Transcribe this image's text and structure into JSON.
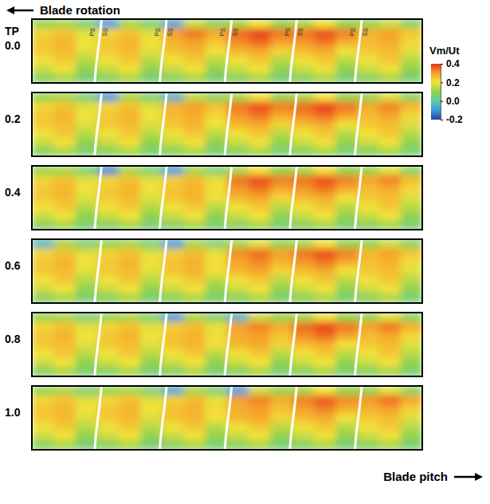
{
  "chart_data": {
    "type": "heatmap",
    "rotation_label": "Blade rotation",
    "x_label": "Blade pitch",
    "panel_axis_label": "TP",
    "tick_labels": false,
    "colorbar_title": "Vm/Ut",
    "colorbar_lim": [
      -0.2,
      0.4
    ],
    "colorbar_ticks": [
      0.4,
      0.2,
      {
        "value": 0,
        "label": "0.0"
      },
      -0.2
    ],
    "colorbar_colors": [
      "#2a3f9e",
      "#3a9ad9",
      "#5cc9a7",
      "#8fd24e",
      "#f2e33b",
      "#f5a02a",
      "#e8301c"
    ],
    "panels": [
      {
        "label": "0.0",
        "blade_labels": [
          "PS",
          "SS"
        ],
        "cells": [
          [
            0.1,
            0.12,
            0.06,
            -0.1,
            0.12,
            0.06,
            -0.08,
            0.16,
            0.08,
            0.12,
            0.2,
            0.1,
            0.12,
            0.2,
            0.1,
            0.1,
            0.16,
            0.08
          ],
          [
            0.22,
            0.25,
            0.18,
            0.22,
            0.25,
            0.18,
            0.3,
            0.34,
            0.29,
            0.35,
            0.39,
            0.34,
            0.34,
            0.38,
            0.33,
            0.27,
            0.3,
            0.24
          ],
          [
            0.24,
            0.27,
            0.2,
            0.24,
            0.27,
            0.2,
            0.27,
            0.3,
            0.25,
            0.32,
            0.35,
            0.3,
            0.31,
            0.34,
            0.28,
            0.26,
            0.28,
            0.22
          ],
          [
            0.24,
            0.26,
            0.18,
            0.24,
            0.26,
            0.18,
            0.25,
            0.27,
            0.2,
            0.27,
            0.29,
            0.22,
            0.26,
            0.28,
            0.2,
            0.24,
            0.26,
            0.18
          ],
          [
            0.2,
            0.24,
            0.14,
            0.2,
            0.24,
            0.14,
            0.2,
            0.24,
            0.14,
            0.2,
            0.24,
            0.14,
            0.2,
            0.24,
            0.14,
            0.2,
            0.24,
            0.14
          ],
          [
            0.16,
            0.2,
            0.1,
            0.16,
            0.2,
            0.1,
            0.16,
            0.2,
            0.1,
            0.16,
            0.2,
            0.1,
            0.16,
            0.2,
            0.1,
            0.16,
            0.2,
            0.1
          ],
          [
            0.08,
            0.12,
            0.06,
            0.08,
            0.12,
            0.06,
            0.08,
            0.12,
            0.06,
            0.08,
            0.12,
            0.06,
            0.08,
            0.12,
            0.06,
            0.08,
            0.12,
            0.06
          ]
        ]
      },
      {
        "label": "0.2",
        "cells": [
          [
            0.1,
            0.12,
            0.06,
            -0.1,
            0.12,
            0.06,
            -0.06,
            0.14,
            0.08,
            0.12,
            0.2,
            0.1,
            0.12,
            0.2,
            0.1,
            0.1,
            0.18,
            0.08
          ],
          [
            0.22,
            0.25,
            0.18,
            0.22,
            0.25,
            0.18,
            0.27,
            0.3,
            0.25,
            0.34,
            0.38,
            0.33,
            0.35,
            0.39,
            0.34,
            0.29,
            0.33,
            0.27
          ],
          [
            0.24,
            0.27,
            0.2,
            0.24,
            0.27,
            0.2,
            0.26,
            0.28,
            0.22,
            0.31,
            0.34,
            0.29,
            0.32,
            0.35,
            0.3,
            0.26,
            0.29,
            0.22
          ],
          [
            0.24,
            0.26,
            0.18,
            0.24,
            0.26,
            0.18,
            0.25,
            0.27,
            0.2,
            0.27,
            0.29,
            0.22,
            0.26,
            0.28,
            0.2,
            0.24,
            0.26,
            0.18
          ],
          [
            0.2,
            0.24,
            0.14,
            0.2,
            0.24,
            0.14,
            0.2,
            0.24,
            0.14,
            0.2,
            0.24,
            0.14,
            0.2,
            0.24,
            0.14,
            0.2,
            0.24,
            0.14
          ],
          [
            0.16,
            0.2,
            0.1,
            0.16,
            0.2,
            0.1,
            0.16,
            0.2,
            0.1,
            0.16,
            0.2,
            0.1,
            0.16,
            0.2,
            0.1,
            0.16,
            0.2,
            0.1
          ],
          [
            0.08,
            0.12,
            0.06,
            0.08,
            0.12,
            0.06,
            0.08,
            0.12,
            0.06,
            0.08,
            0.12,
            0.06,
            0.08,
            0.12,
            0.06,
            0.08,
            0.12,
            0.06
          ]
        ]
      },
      {
        "label": "0.4",
        "cells": [
          [
            0.1,
            0.12,
            0.06,
            -0.12,
            0.12,
            0.06,
            -0.1,
            0.12,
            0.06,
            0.12,
            0.2,
            0.1,
            0.12,
            0.2,
            0.1,
            0.1,
            0.18,
            0.08
          ],
          [
            0.22,
            0.25,
            0.18,
            0.22,
            0.25,
            0.18,
            0.23,
            0.26,
            0.19,
            0.34,
            0.38,
            0.33,
            0.34,
            0.38,
            0.33,
            0.29,
            0.33,
            0.26
          ],
          [
            0.24,
            0.27,
            0.2,
            0.24,
            0.27,
            0.2,
            0.25,
            0.27,
            0.21,
            0.31,
            0.34,
            0.29,
            0.31,
            0.34,
            0.29,
            0.26,
            0.28,
            0.22
          ],
          [
            0.24,
            0.26,
            0.18,
            0.24,
            0.26,
            0.18,
            0.25,
            0.27,
            0.2,
            0.27,
            0.29,
            0.22,
            0.26,
            0.28,
            0.2,
            0.24,
            0.26,
            0.18
          ],
          [
            0.2,
            0.24,
            0.14,
            0.2,
            0.24,
            0.14,
            0.2,
            0.24,
            0.14,
            0.2,
            0.24,
            0.14,
            0.2,
            0.24,
            0.14,
            0.2,
            0.24,
            0.14
          ],
          [
            0.16,
            0.2,
            0.1,
            0.16,
            0.2,
            0.1,
            0.16,
            0.2,
            0.1,
            0.16,
            0.2,
            0.1,
            0.16,
            0.2,
            0.1,
            0.16,
            0.2,
            0.1
          ],
          [
            0.08,
            0.12,
            0.06,
            0.08,
            0.12,
            0.06,
            0.08,
            0.12,
            0.06,
            0.08,
            0.12,
            0.06,
            0.08,
            0.12,
            0.06,
            0.08,
            0.12,
            0.06
          ]
        ]
      },
      {
        "label": "0.6",
        "cells": [
          [
            -0.05,
            0.12,
            0.06,
            0.1,
            0.12,
            0.06,
            -0.1,
            0.12,
            0.06,
            0.12,
            0.18,
            0.1,
            0.12,
            0.2,
            0.1,
            0.1,
            0.16,
            0.08
          ],
          [
            0.22,
            0.25,
            0.18,
            0.22,
            0.25,
            0.18,
            0.23,
            0.26,
            0.19,
            0.32,
            0.35,
            0.3,
            0.34,
            0.38,
            0.33,
            0.27,
            0.3,
            0.24
          ],
          [
            0.24,
            0.27,
            0.2,
            0.24,
            0.27,
            0.2,
            0.25,
            0.27,
            0.21,
            0.29,
            0.32,
            0.27,
            0.31,
            0.34,
            0.29,
            0.25,
            0.27,
            0.21
          ],
          [
            0.24,
            0.26,
            0.18,
            0.24,
            0.26,
            0.18,
            0.25,
            0.27,
            0.2,
            0.27,
            0.29,
            0.22,
            0.26,
            0.28,
            0.2,
            0.24,
            0.26,
            0.18
          ],
          [
            0.2,
            0.24,
            0.14,
            0.2,
            0.24,
            0.14,
            0.2,
            0.24,
            0.14,
            0.2,
            0.24,
            0.14,
            0.2,
            0.24,
            0.14,
            0.2,
            0.24,
            0.14
          ],
          [
            0.16,
            0.2,
            0.1,
            0.16,
            0.2,
            0.1,
            0.16,
            0.2,
            0.1,
            0.16,
            0.2,
            0.1,
            0.16,
            0.2,
            0.1,
            0.16,
            0.2,
            0.1
          ],
          [
            0.08,
            0.12,
            0.06,
            0.08,
            0.12,
            0.06,
            0.08,
            0.12,
            0.06,
            0.08,
            0.12,
            0.06,
            0.08,
            0.12,
            0.06,
            0.08,
            0.12,
            0.06
          ]
        ]
      },
      {
        "label": "0.8",
        "cells": [
          [
            0.1,
            0.12,
            0.06,
            0.1,
            0.12,
            0.06,
            -0.1,
            0.12,
            0.06,
            -0.05,
            0.16,
            0.1,
            0.12,
            0.2,
            0.1,
            0.1,
            0.18,
            0.08
          ],
          [
            0.22,
            0.25,
            0.18,
            0.22,
            0.25,
            0.18,
            0.23,
            0.26,
            0.19,
            0.3,
            0.33,
            0.28,
            0.35,
            0.39,
            0.34,
            0.3,
            0.34,
            0.28
          ],
          [
            0.24,
            0.27,
            0.2,
            0.24,
            0.27,
            0.2,
            0.25,
            0.27,
            0.21,
            0.28,
            0.3,
            0.25,
            0.32,
            0.35,
            0.3,
            0.26,
            0.29,
            0.22
          ],
          [
            0.24,
            0.26,
            0.18,
            0.24,
            0.26,
            0.18,
            0.25,
            0.27,
            0.2,
            0.27,
            0.29,
            0.22,
            0.26,
            0.28,
            0.2,
            0.24,
            0.26,
            0.18
          ],
          [
            0.2,
            0.24,
            0.14,
            0.2,
            0.24,
            0.14,
            0.2,
            0.24,
            0.14,
            0.2,
            0.24,
            0.14,
            0.2,
            0.24,
            0.14,
            0.2,
            0.24,
            0.14
          ],
          [
            0.16,
            0.2,
            0.1,
            0.16,
            0.2,
            0.1,
            0.16,
            0.2,
            0.1,
            0.16,
            0.2,
            0.1,
            0.16,
            0.2,
            0.1,
            0.16,
            0.2,
            0.1
          ],
          [
            0.08,
            0.12,
            0.06,
            0.08,
            0.12,
            0.06,
            0.08,
            0.12,
            0.06,
            0.08,
            0.12,
            0.06,
            0.08,
            0.12,
            0.06,
            0.08,
            0.12,
            0.06
          ]
        ]
      },
      {
        "label": "1.0",
        "cells": [
          [
            0.1,
            0.12,
            0.06,
            0.1,
            0.12,
            0.06,
            -0.08,
            0.12,
            0.06,
            -0.1,
            0.16,
            0.1,
            0.12,
            0.2,
            0.1,
            0.1,
            0.18,
            0.08
          ],
          [
            0.22,
            0.25,
            0.18,
            0.22,
            0.25,
            0.18,
            0.23,
            0.26,
            0.19,
            0.3,
            0.33,
            0.28,
            0.33,
            0.37,
            0.32,
            0.31,
            0.35,
            0.29
          ],
          [
            0.24,
            0.27,
            0.2,
            0.24,
            0.27,
            0.2,
            0.25,
            0.27,
            0.21,
            0.28,
            0.3,
            0.25,
            0.3,
            0.33,
            0.28,
            0.27,
            0.3,
            0.23
          ],
          [
            0.24,
            0.26,
            0.18,
            0.24,
            0.26,
            0.18,
            0.25,
            0.27,
            0.2,
            0.27,
            0.29,
            0.22,
            0.26,
            0.28,
            0.2,
            0.24,
            0.26,
            0.18
          ],
          [
            0.2,
            0.24,
            0.14,
            0.2,
            0.24,
            0.14,
            0.2,
            0.24,
            0.14,
            0.2,
            0.24,
            0.14,
            0.2,
            0.24,
            0.14,
            0.2,
            0.24,
            0.14
          ],
          [
            0.16,
            0.2,
            0.1,
            0.16,
            0.2,
            0.1,
            0.16,
            0.2,
            0.1,
            0.16,
            0.2,
            0.1,
            0.16,
            0.2,
            0.1,
            0.16,
            0.2,
            0.1
          ],
          [
            0.08,
            0.12,
            0.06,
            0.08,
            0.12,
            0.06,
            0.08,
            0.12,
            0.06,
            0.08,
            0.12,
            0.06,
            0.08,
            0.12,
            0.06,
            0.08,
            0.12,
            0.06
          ]
        ]
      }
    ]
  }
}
